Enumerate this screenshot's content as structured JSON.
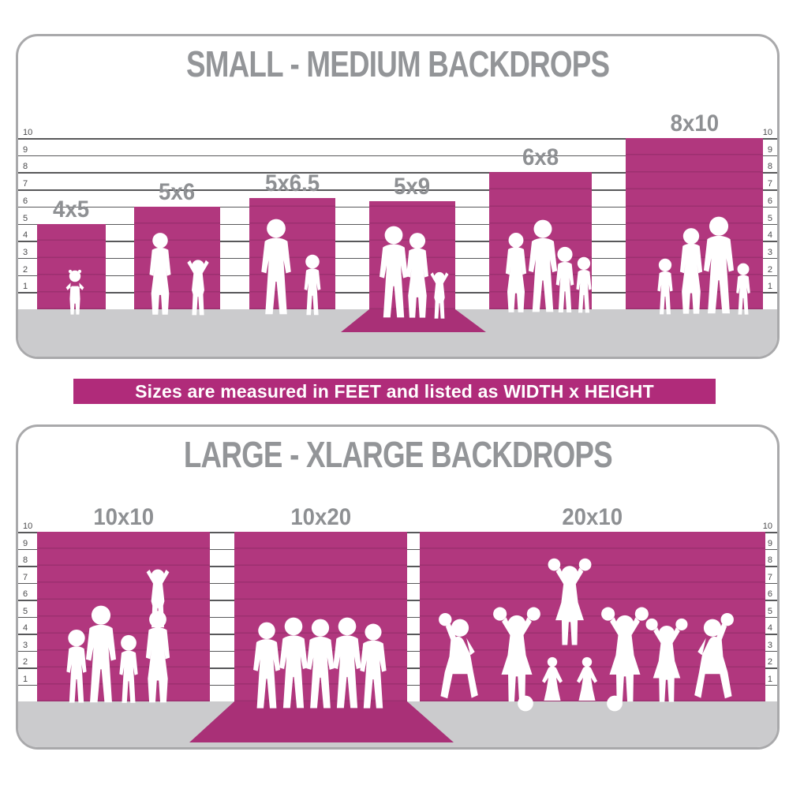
{
  "colors": {
    "accent": "#b1377e",
    "accent_dark": "#a93077",
    "banner_bg": "#b02b7a",
    "title_gray": "#939598",
    "label_gray": "#8e9093",
    "floor_gray": "#cbcbcd",
    "line_gray": "#58585a",
    "panel_border": "#a9a9ab",
    "silhouette": "#ffffff"
  },
  "banner": {
    "text": "Sizes are measured in FEET and listed as WIDTH x HEIGHT"
  },
  "ruler_ticks": [
    "1",
    "2",
    "3",
    "4",
    "5",
    "6",
    "7",
    "8",
    "9",
    "10"
  ],
  "panels": [
    {
      "title": "SMALL - MEDIUM BACKDROPS",
      "backdrops": [
        {
          "label": "4x5",
          "width_ft": 4,
          "height_ft": 5,
          "figures": "toddler girl"
        },
        {
          "label": "5x6",
          "width_ft": 5,
          "height_ft": 6,
          "figures": "woman and cheering child"
        },
        {
          "label": "5x6.5",
          "width_ft": 5,
          "height_ft": 6.5,
          "figures": "man and boy"
        },
        {
          "label": "5x9",
          "width_ft": 5,
          "height_ft": 9,
          "floor_sweep": true,
          "figures": "couple with small child"
        },
        {
          "label": "6x8",
          "width_ft": 6,
          "height_ft": 8,
          "figures": "family of four"
        },
        {
          "label": "8x10",
          "width_ft": 8,
          "height_ft": 10,
          "figures": "family of four"
        }
      ]
    },
    {
      "title": "LARGE - XLARGE BACKDROPS",
      "backdrops": [
        {
          "label": "10x10",
          "width_ft": 10,
          "height_ft": 10,
          "figures": "family with child on shoulders"
        },
        {
          "label": "10x20",
          "width_ft": 10,
          "height_ft": 20,
          "floor_sweep": true,
          "figures": "five teens standing in a row"
        },
        {
          "label": "20x10",
          "width_ft": 20,
          "height_ft": 10,
          "figures": "cheerleading squad with pyramid"
        }
      ]
    }
  ]
}
